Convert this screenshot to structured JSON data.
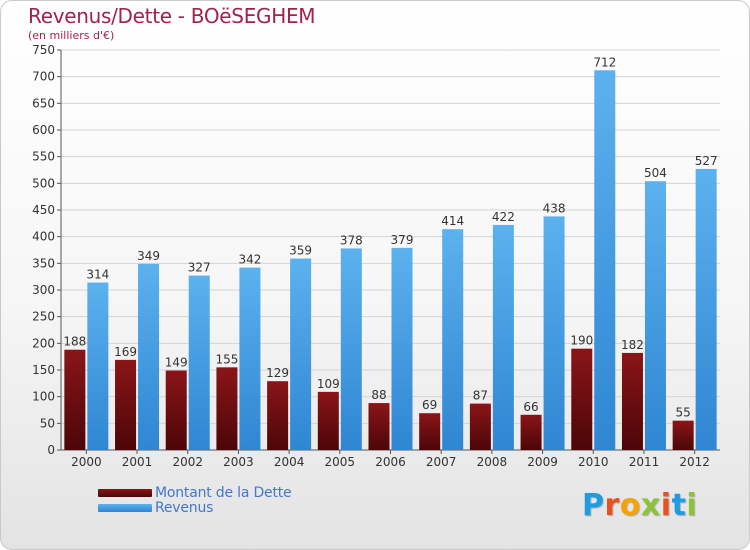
{
  "title": "Revenus/Dette - BOëSEGHEM",
  "subtitle": "(en milliers d'€)",
  "logo": {
    "letters": [
      "P",
      "r",
      "o",
      "x",
      "i",
      "t",
      "i"
    ],
    "colors": [
      "#1f9be0",
      "#e8501f",
      "#f5a300",
      "#8bc33a",
      "#e8501f",
      "#1f9be0",
      "#8bc33a"
    ]
  },
  "colors": {
    "dette": "#7a0f12",
    "revenus": "#4aa3e8"
  },
  "chart_data": {
    "type": "bar",
    "title": "Revenus/Dette - BOëSEGHEM",
    "subtitle": "(en milliers d'€)",
    "categories": [
      "2000",
      "2001",
      "2002",
      "2003",
      "2004",
      "2005",
      "2006",
      "2007",
      "2008",
      "2009",
      "2010",
      "2011",
      "2012"
    ],
    "series": [
      {
        "name": "Montant de la Dette",
        "values": [
          188,
          169,
          149,
          155,
          129,
          109,
          88,
          69,
          87,
          66,
          190,
          182,
          55
        ]
      },
      {
        "name": "Revenus",
        "values": [
          314,
          349,
          327,
          342,
          359,
          378,
          379,
          414,
          422,
          438,
          712,
          504,
          527
        ]
      }
    ],
    "ylim": [
      0,
      750
    ],
    "yticks": [
      0,
      50,
      100,
      150,
      200,
      250,
      300,
      350,
      400,
      450,
      500,
      550,
      600,
      650,
      700,
      750
    ],
    "grid": true,
    "legend": "bottom-left"
  }
}
